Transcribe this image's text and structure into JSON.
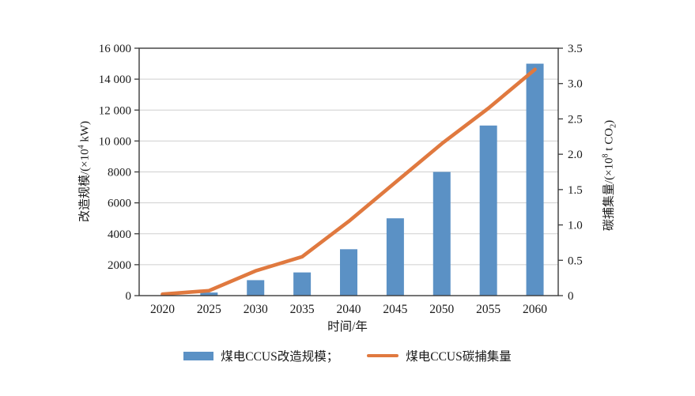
{
  "chart_data": {
    "type": "bar+line",
    "categories": [
      "2020",
      "2025",
      "2030",
      "2035",
      "2040",
      "2045",
      "2050",
      "2055",
      "2060"
    ],
    "series": [
      {
        "name": "煤电CCUS改造规模",
        "chart": "bar",
        "axis": "left",
        "color": "#5b91c5",
        "values": [
          0,
          200,
          1000,
          1500,
          3000,
          5000,
          8000,
          11000,
          15000
        ]
      },
      {
        "name": "煤电CCUS碳捕集量",
        "chart": "line",
        "axis": "right",
        "color": "#e0793f",
        "values": [
          0.02,
          0.07,
          0.35,
          0.55,
          1.05,
          1.6,
          2.15,
          2.65,
          3.2
        ]
      }
    ],
    "xlabel": "时间/年",
    "left_axis": {
      "label": "改造规模/(×10⁴ kW)",
      "title_pre": "改造规模/(×10",
      "title_sup": "4",
      "title_post": " kW)",
      "ticks": [
        "0",
        "2000",
        "4000",
        "6000",
        "8000",
        "10 000",
        "12 000",
        "14 000",
        "16 000"
      ],
      "lim": [
        0,
        16000
      ],
      "step": 2000
    },
    "right_axis": {
      "label": "碳捕集量/(×10⁸ t CO₂)",
      "title_pre": "碳捕集量/(×10",
      "title_sup": "8",
      "title_mid": " t CO",
      "title_sub": "2",
      "title_post": ")",
      "ticks": [
        "0",
        "0.5",
        "1.0",
        "1.5",
        "2.0",
        "2.5",
        "3.0",
        "3.5"
      ],
      "lim": [
        0,
        3.5
      ],
      "step": 0.5
    },
    "legend": {
      "items": [
        {
          "label": "煤电CCUS改造规模；",
          "swatch": "bar"
        },
        {
          "label": "煤电CCUS碳捕集量",
          "swatch": "line"
        }
      ]
    },
    "grid": "horizontal gridlines at left-axis ticks",
    "legend_position": "bottom center",
    "colors": {
      "gridline": "#cfcfcf",
      "axis": "#3a3a3a"
    }
  }
}
